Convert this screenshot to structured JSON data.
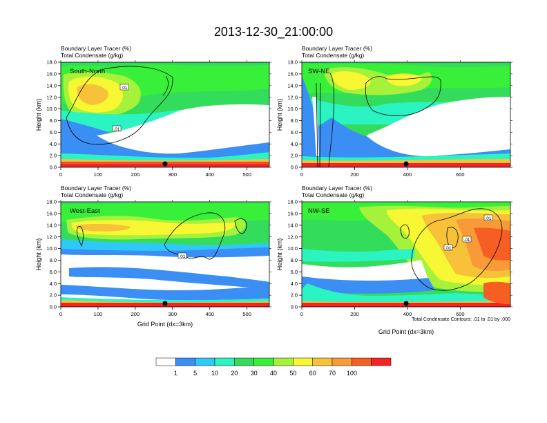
{
  "title": "2013-12-30_21:00:00",
  "colorbar": {
    "colors": [
      "#ffffff",
      "#3b8ef3",
      "#2fc9f8",
      "#2bf3c2",
      "#34dc5c",
      "#38f03a",
      "#a6f23a",
      "#f7f733",
      "#f7c23a",
      "#f79a37",
      "#f75e24",
      "#f52323"
    ],
    "labels": [
      "1",
      "5",
      "10",
      "20",
      "30",
      "40",
      "50",
      "60",
      "70",
      "100"
    ]
  },
  "footnote": "Total Condensate Contours: .01 to .01 by .000",
  "contour_label": ".01",
  "chart_data": [
    {
      "type": "heatmap",
      "panel_label": "South-North",
      "title_line1": "Boundary Layer Tracer   (%)",
      "title_line2": "Total Condensate   (g/kg)",
      "ylabel": "Height (km)",
      "xlabel": "",
      "xlim": [
        0,
        560
      ],
      "ylim": [
        0,
        18
      ],
      "xticks": [
        0,
        100,
        200,
        300,
        400,
        500
      ],
      "yticks": [
        "0.0",
        "2.0",
        "4.0",
        "6.0",
        "8.0",
        "10.0",
        "12.0",
        "14.0",
        "16.0",
        "18.0"
      ],
      "marker_x": 280
    },
    {
      "type": "heatmap",
      "panel_label": "SW-NE",
      "title_line1": "Boundary Layer Tracer   (%)",
      "title_line2": "Total Condensate   (g/kg)",
      "ylabel": "Height (km)",
      "xlabel": "",
      "xlim": [
        0,
        790
      ],
      "ylim": [
        0,
        18
      ],
      "xticks": [
        0,
        200,
        400,
        600
      ],
      "yticks": [
        "0.0",
        "2.0",
        "4.0",
        "6.0",
        "8.0",
        "10.0",
        "12.0",
        "14.0",
        "16.0",
        "18.0"
      ],
      "marker_x": 395
    },
    {
      "type": "heatmap",
      "panel_label": "West-East",
      "title_line1": "Boundary Layer Tracer   (%)",
      "title_line2": "Total Condensate   (g/kg)",
      "ylabel": "Height (km)",
      "xlabel": "Grid Point (dx=3km)",
      "xlim": [
        0,
        560
      ],
      "ylim": [
        0,
        18
      ],
      "xticks": [
        0,
        100,
        200,
        300,
        400,
        500
      ],
      "yticks": [
        "0.0",
        "2.0",
        "4.0",
        "6.0",
        "8.0",
        "10.0",
        "12.0",
        "14.0",
        "16.0",
        "18.0"
      ],
      "marker_x": 280
    },
    {
      "type": "heatmap",
      "panel_label": "NW-SE",
      "title_line1": "Boundary Layer Tracer   (%)",
      "title_line2": "Total Condensate   (g/kg)",
      "ylabel": "Height (km)",
      "xlabel": "Grid Point (dx=3km)",
      "xlim": [
        0,
        790
      ],
      "ylim": [
        0,
        18
      ],
      "xticks": [
        0,
        200,
        400,
        600
      ],
      "yticks": [
        "0.0",
        "2.0",
        "4.0",
        "6.0",
        "8.0",
        "10.0",
        "12.0",
        "14.0",
        "16.0",
        "18.0"
      ],
      "marker_x": 395
    }
  ]
}
